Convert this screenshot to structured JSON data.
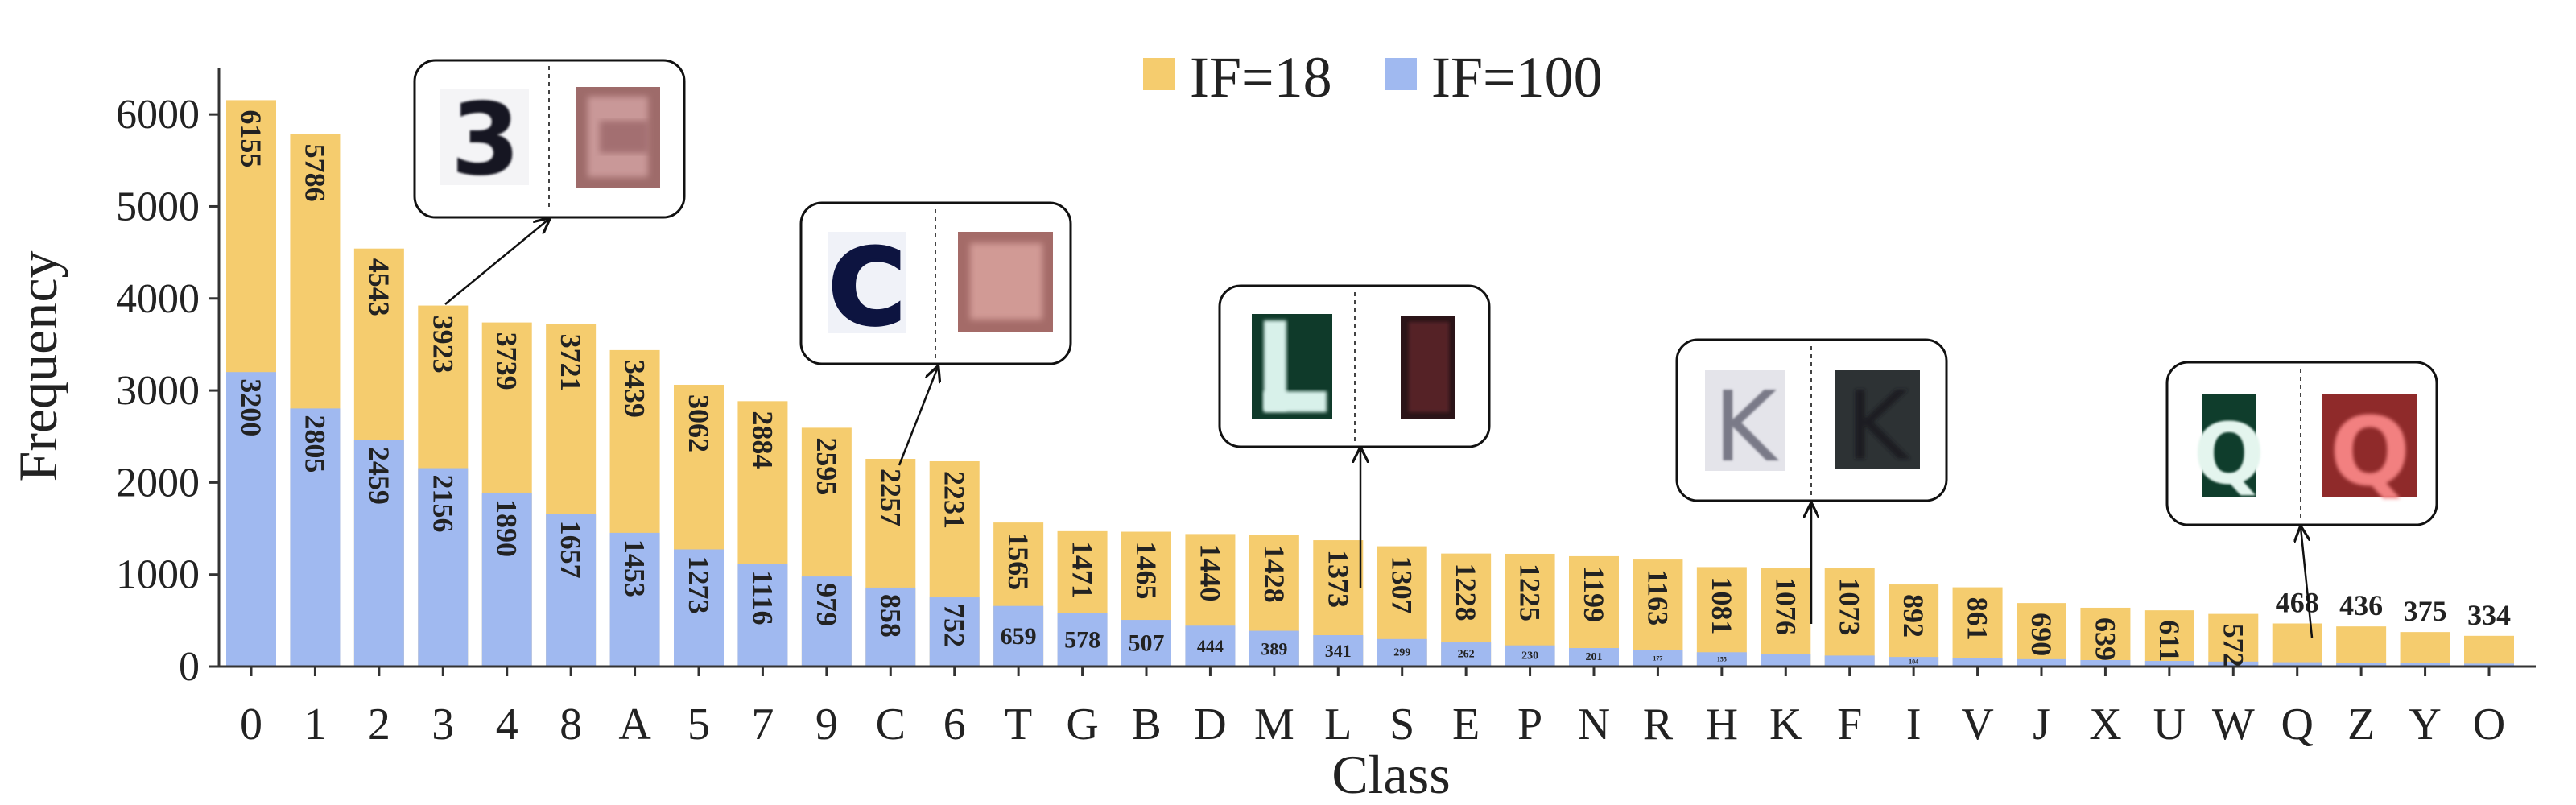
{
  "chart_data": {
    "type": "bar",
    "stacked": "overlay",
    "xlabel": "Class",
    "ylabel": "Frequency",
    "ylim": [
      0,
      6500
    ],
    "yticks": [
      0,
      1000,
      2000,
      3000,
      4000,
      5000,
      6000
    ],
    "grid": false,
    "legend_position": "top-center",
    "categories": [
      "0",
      "1",
      "2",
      "3",
      "4",
      "8",
      "A",
      "5",
      "7",
      "9",
      "C",
      "6",
      "T",
      "G",
      "B",
      "D",
      "M",
      "L",
      "S",
      "E",
      "P",
      "N",
      "R",
      "H",
      "K",
      "F",
      "I",
      "V",
      "J",
      "X",
      "U",
      "W",
      "Q",
      "Z",
      "Y",
      "O"
    ],
    "series": [
      {
        "name": "IF=18",
        "color": "#F5CC6E",
        "values": [
          6155,
          5786,
          4543,
          3923,
          3739,
          3721,
          3439,
          3062,
          2884,
          2595,
          2257,
          2231,
          1565,
          1471,
          1465,
          1440,
          1428,
          1373,
          1307,
          1228,
          1225,
          1199,
          1163,
          1081,
          1076,
          1073,
          892,
          861,
          690,
          639,
          611,
          572,
          468,
          436,
          375,
          334
        ],
        "labels": [
          "6155",
          "5786",
          "4543",
          "3923",
          "3739",
          "3721",
          "3439",
          "3062",
          "2884",
          "2595",
          "2257",
          "2231",
          "1565",
          "1471",
          "1465",
          "1440",
          "1428",
          "1373",
          "1307",
          "1228",
          "1225",
          "1199",
          "1163",
          "1081",
          "1076",
          "1073",
          "892",
          "861",
          "690",
          "639",
          "611",
          "572",
          "468",
          "436",
          "375",
          "334"
        ]
      },
      {
        "name": "IF=100",
        "color": "#A0B9F0",
        "values": [
          3200,
          2805,
          2459,
          2156,
          1890,
          1657,
          1453,
          1273,
          1116,
          979,
          858,
          752,
          659,
          578,
          507,
          444,
          389,
          341,
          299,
          262,
          230,
          201,
          177,
          155,
          136,
          119,
          104,
          91,
          80,
          70,
          61,
          54,
          47,
          41,
          36,
          32
        ],
        "labels": [
          "3200",
          "2805",
          "2459",
          "2156",
          "1890",
          "1657",
          "1453",
          "1273",
          "1116",
          "979",
          "858",
          "752",
          "659",
          "578",
          "507",
          "444",
          "389",
          "341",
          "299",
          "262",
          "230",
          "201",
          "177",
          "155",
          "",
          "",
          "104",
          "",
          "",
          "",
          "",
          "",
          "",
          "",
          "",
          ""
        ]
      }
    ],
    "inset_images": [
      {
        "category": "3",
        "left": "digit 3 dark on white",
        "right": "blurred red-brown patch"
      },
      {
        "category": "C",
        "left": "white C on navy",
        "right": "blurred red-brown patch"
      },
      {
        "category": "L",
        "left": "white L on dark green",
        "right": "dark maroon patch"
      },
      {
        "category": "K",
        "left": "grey noisy K",
        "right": "dark grey K patch"
      },
      {
        "category": "Q",
        "left": "white Q on dark green",
        "right": "red glowing Q"
      }
    ]
  }
}
